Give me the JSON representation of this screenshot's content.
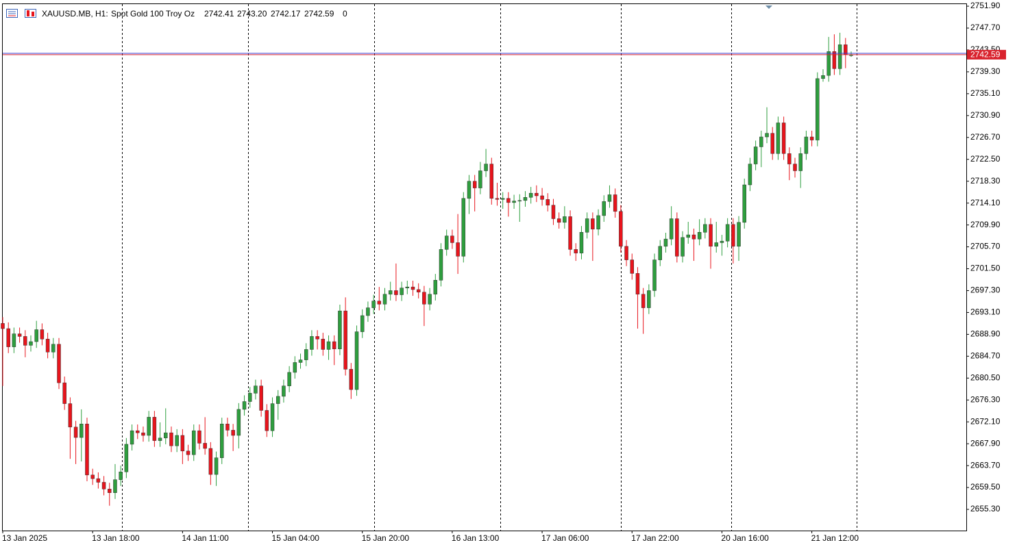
{
  "header": {
    "symbol": "XAUUSD.MB, H1:",
    "description": "Spot Gold 100 Troy Oz",
    "ohlc_labels": [
      "2742.41",
      "2743.20",
      "2742.17",
      "2742.59"
    ],
    "spread": "0"
  },
  "chart_data": {
    "type": "candlestick",
    "up_color": "#2e9e3e",
    "down_color": "#e8141c",
    "wick_color": "#333333",
    "bid_color": "#d9232e",
    "ask_color": "#3a3ad0",
    "categories": [
      "13 Jan 2025",
      null,
      null,
      null,
      null,
      null,
      null,
      null,
      null,
      null,
      null,
      null,
      null,
      null,
      null,
      null,
      "13 Jan 18:00",
      null,
      null,
      null,
      null,
      null,
      null,
      null,
      null,
      null,
      null,
      null,
      null,
      null,
      null,
      null,
      "14 Jan 11:00",
      null,
      null,
      null,
      null,
      null,
      null,
      null,
      null,
      null,
      null,
      null,
      null,
      null,
      null,
      null,
      "15 Jan 04:00",
      null,
      null,
      null,
      null,
      null,
      null,
      null,
      null,
      null,
      null,
      null,
      null,
      null,
      null,
      null,
      "15 Jan 20:00",
      null,
      null,
      null,
      null,
      null,
      null,
      null,
      null,
      null,
      null,
      null,
      null,
      null,
      null,
      null,
      "16 Jan 13:00",
      null,
      null,
      null,
      null,
      null,
      null,
      null,
      null,
      null,
      null,
      null,
      null,
      null,
      null,
      null,
      "17 Jan 06:00",
      null,
      null,
      null,
      null,
      null,
      null,
      null,
      null,
      null,
      null,
      null,
      null,
      null,
      null,
      null,
      "17 Jan 22:00",
      null,
      null,
      null,
      null,
      null,
      null,
      null,
      null,
      null,
      null,
      null,
      null,
      null,
      null,
      null,
      "20 Jan 16:00",
      null,
      null,
      null,
      null,
      null,
      null,
      null,
      null,
      null,
      null,
      null,
      null,
      null,
      null,
      null,
      "21 Jan 12:00",
      null,
      null,
      null,
      null,
      null,
      null,
      null
    ],
    "open": [
      2691.0,
      2690.0,
      2686.5,
      2689.0,
      2688.5,
      2686.8,
      2687.5,
      2689.8,
      2688.0,
      2685.5,
      2687.0,
      2679.6,
      2675.6,
      2671.1,
      2669.1,
      2671.7,
      2661.9,
      2661.2,
      2660.5,
      2659.2,
      2658.5,
      2661.0,
      2662.5,
      2667.8,
      2670.4,
      2670.0,
      2669.5,
      2673.0,
      2668.5,
      2669.0,
      2670.0,
      2667.5,
      2669.5,
      2666.5,
      2665.8,
      2670.4,
      2668.0,
      2667.0,
      2662.0,
      2665.2,
      2671.7,
      2670.5,
      2669.5,
      2674.5,
      2676.0,
      2677.6,
      2679.0,
      2674.3,
      2670.4,
      2675.6,
      2677.0,
      2679.0,
      2681.6,
      2683.5,
      2684.0,
      2686.0,
      2688.5,
      2688.0,
      2686.0,
      2687.5,
      2686.1,
      2693.4,
      2682.2,
      2678.3,
      2689.4,
      2692.5,
      2694.0,
      2695.3,
      2694.7,
      2696.6,
      2697.3,
      2696.5,
      2697.8,
      2698.0,
      2697.5,
      2697.0,
      2694.7,
      2696.6,
      2699.3,
      2705.2,
      2707.8,
      2706.5,
      2703.9,
      2715.0,
      2718.3,
      2717.0,
      2720.3,
      2721.6,
      2715.0,
      2714.8,
      2715.0,
      2714.2,
      2714.5,
      2714.6,
      2715.2,
      2716.0,
      2715.5,
      2714.8,
      2713.7,
      2711.1,
      2710.4,
      2711.5,
      2705.2,
      2704.5,
      2708.5,
      2711.1,
      2709.1,
      2711.7,
      2714.4,
      2715.7,
      2712.5,
      2705.8,
      2703.2,
      2700.6,
      2696.6,
      2694.0,
      2697.3,
      2703.2,
      2705.8,
      2707.2,
      2711.1,
      2703.9,
      2707.5,
      2708.0,
      2707.2,
      2708.5,
      2710.0,
      2705.8,
      2706.5,
      2706.8,
      2710.0,
      2705.8,
      2710.4,
      2717.6,
      2721.6,
      2724.9,
      2726.8,
      2727.5,
      2723.6,
      2729.5,
      2723.6,
      2721.6,
      2720.3,
      2723.6,
      2726.8,
      2726.2,
      2738.0,
      2738.6,
      2743.2,
      2739.9,
      2744.5,
      2742.41
    ],
    "high": [
      2692.2,
      2691.2,
      2690.2,
      2690.2,
      2689.7,
      2688.7,
      2691.5,
      2691.0,
      2689.2,
      2688.2,
      2688.2,
      2680.8,
      2676.8,
      2672.3,
      2674.5,
      2672.9,
      2663.1,
      2662.4,
      2661.7,
      2660.4,
      2664.0,
      2663.7,
      2669.0,
      2671.6,
      2671.6,
      2671.2,
      2674.2,
      2674.2,
      2672.0,
      2674.7,
      2671.2,
      2670.7,
      2670.7,
      2667.7,
      2671.6,
      2671.6,
      2673.0,
      2668.2,
      2666.4,
      2672.9,
      2672.9,
      2671.7,
      2675.7,
      2677.2,
      2678.8,
      2680.2,
      2680.2,
      2675.5,
      2676.8,
      2678.2,
      2680.2,
      2682.8,
      2684.7,
      2685.2,
      2687.2,
      2689.7,
      2689.7,
      2689.2,
      2688.7,
      2688.7,
      2694.6,
      2696.0,
      2683.4,
      2690.6,
      2693.7,
      2695.2,
      2696.5,
      2698.0,
      2697.8,
      2699.0,
      2702.5,
      2699.0,
      2699.2,
      2699.2,
      2698.7,
      2698.2,
      2697.8,
      2700.5,
      2706.4,
      2709.0,
      2709.0,
      2712.0,
      2716.2,
      2719.5,
      2719.5,
      2722.0,
      2724.5,
      2722.8,
      2718.0,
      2716.2,
      2716.2,
      2715.7,
      2715.8,
      2716.4,
      2717.2,
      2717.5,
      2717.0,
      2716.0,
      2714.9,
      2712.3,
      2713.5,
      2712.7,
      2706.4,
      2709.7,
      2712.3,
      2712.3,
      2712.9,
      2715.6,
      2717.5,
      2716.9,
      2713.7,
      2707.0,
      2704.4,
      2701.8,
      2697.8,
      2698.5,
      2704.4,
      2707.0,
      2708.4,
      2713.5,
      2712.3,
      2708.7,
      2710.5,
      2709.2,
      2711.0,
      2711.2,
      2711.2,
      2710.5,
      2708.0,
      2711.2,
      2711.2,
      2711.6,
      2718.8,
      2722.8,
      2726.1,
      2728.0,
      2732.5,
      2728.7,
      2730.7,
      2730.7,
      2724.8,
      2722.8,
      2724.8,
      2728.0,
      2728.0,
      2739.2,
      2739.8,
      2746.0,
      2746.5,
      2746.8,
      2745.8,
      2743.2
    ],
    "low": [
      2679.0,
      2685.3,
      2685.3,
      2687.3,
      2684.5,
      2685.6,
      2686.3,
      2686.8,
      2684.3,
      2684.3,
      2678.4,
      2674.4,
      2665.0,
      2664.0,
      2664.5,
      2660.7,
      2660.0,
      2659.3,
      2658.0,
      2656.0,
      2657.3,
      2659.8,
      2661.3,
      2666.6,
      2668.8,
      2668.3,
      2668.3,
      2667.3,
      2667.3,
      2667.8,
      2666.3,
      2666.3,
      2664.0,
      2664.6,
      2664.6,
      2666.8,
      2665.8,
      2660.0,
      2659.8,
      2664.0,
      2669.3,
      2666.5,
      2667.0,
      2673.3,
      2674.8,
      2676.4,
      2673.1,
      2669.2,
      2669.2,
      2672.5,
      2675.8,
      2677.8,
      2680.4,
      2682.3,
      2682.8,
      2684.8,
      2686.0,
      2684.8,
      2684.0,
      2683.0,
      2684.9,
      2681.0,
      2676.5,
      2677.1,
      2688.2,
      2691.3,
      2692.8,
      2693.5,
      2693.5,
      2695.4,
      2695.3,
      2695.3,
      2696.6,
      2696.3,
      2695.8,
      2690.5,
      2693.5,
      2695.4,
      2698.1,
      2704.0,
      2705.3,
      2700.5,
      2702.7,
      2712.0,
      2712.5,
      2715.8,
      2719.1,
      2713.8,
      2713.6,
      2713.0,
      2711.5,
      2713.0,
      2710.5,
      2713.4,
      2714.0,
      2714.3,
      2713.6,
      2712.5,
      2709.9,
      2709.2,
      2709.2,
      2704.0,
      2703.0,
      2703.3,
      2707.3,
      2703.0,
      2707.9,
      2710.5,
      2713.2,
      2711.3,
      2704.6,
      2702.0,
      2699.4,
      2690.0,
      2689.0,
      2692.8,
      2696.1,
      2702.0,
      2704.6,
      2706.0,
      2702.7,
      2702.7,
      2706.3,
      2703.0,
      2706.0,
      2707.3,
      2701.5,
      2704.6,
      2704.0,
      2705.6,
      2702.5,
      2703.0,
      2709.2,
      2716.4,
      2720.4,
      2721.0,
      2725.6,
      2722.4,
      2722.4,
      2722.4,
      2718.5,
      2719.0,
      2717.0,
      2722.4,
      2725.0,
      2725.0,
      2737.4,
      2737.4,
      2738.7,
      2738.7,
      2740.0,
      2742.17
    ],
    "close": [
      2690.0,
      2686.5,
      2689.0,
      2688.5,
      2686.8,
      2687.5,
      2689.8,
      2688.0,
      2685.5,
      2687.0,
      2679.6,
      2675.6,
      2671.1,
      2669.1,
      2671.7,
      2661.9,
      2661.2,
      2660.5,
      2659.2,
      2658.5,
      2661.0,
      2662.5,
      2667.8,
      2670.4,
      2670.0,
      2669.5,
      2673.0,
      2668.5,
      2669.0,
      2670.0,
      2667.5,
      2669.5,
      2666.5,
      2665.8,
      2670.4,
      2668.0,
      2667.0,
      2662.0,
      2665.2,
      2671.7,
      2670.5,
      2669.5,
      2674.5,
      2676.0,
      2677.6,
      2679.0,
      2674.3,
      2670.4,
      2675.6,
      2677.0,
      2679.0,
      2681.6,
      2683.5,
      2684.0,
      2686.0,
      2688.5,
      2688.0,
      2686.0,
      2687.5,
      2686.1,
      2693.4,
      2682.2,
      2678.3,
      2689.4,
      2692.5,
      2694.0,
      2695.3,
      2694.7,
      2696.6,
      2697.3,
      2696.5,
      2697.8,
      2698.0,
      2697.5,
      2697.0,
      2694.7,
      2696.6,
      2699.3,
      2705.2,
      2707.8,
      2706.5,
      2703.9,
      2715.0,
      2718.3,
      2717.0,
      2720.3,
      2721.6,
      2715.0,
      2714.8,
      2715.0,
      2714.2,
      2714.5,
      2714.6,
      2715.2,
      2716.0,
      2715.5,
      2714.8,
      2713.7,
      2711.1,
      2710.4,
      2711.5,
      2705.2,
      2704.5,
      2708.5,
      2711.1,
      2709.1,
      2711.7,
      2714.4,
      2715.7,
      2712.5,
      2705.8,
      2703.2,
      2700.6,
      2696.6,
      2694.0,
      2697.3,
      2703.2,
      2705.8,
      2707.2,
      2711.1,
      2703.9,
      2707.5,
      2708.0,
      2707.2,
      2708.5,
      2710.0,
      2705.8,
      2706.5,
      2706.8,
      2710.0,
      2705.8,
      2710.4,
      2717.6,
      2721.6,
      2724.9,
      2726.8,
      2727.5,
      2723.6,
      2729.5,
      2723.6,
      2721.6,
      2720.3,
      2723.6,
      2726.8,
      2726.2,
      2738.0,
      2738.6,
      2743.2,
      2739.9,
      2744.5,
      2742.6,
      2742.59
    ],
    "ylim": [
      2651.23,
      2752.43
    ],
    "yticks": [
      {
        "value": 2655.3,
        "label": "2655.30"
      },
      {
        "value": 2659.5,
        "label": "2659.50"
      },
      {
        "value": 2663.7,
        "label": "2663.70"
      },
      {
        "value": 2667.9,
        "label": "2667.90"
      },
      {
        "value": 2672.1,
        "label": "2672.10"
      },
      {
        "value": 2676.3,
        "label": "2676.30"
      },
      {
        "value": 2680.5,
        "label": "2680.50"
      },
      {
        "value": 2684.7,
        "label": "2684.70"
      },
      {
        "value": 2688.9,
        "label": "2688.90"
      },
      {
        "value": 2693.1,
        "label": "2693.10"
      },
      {
        "value": 2697.3,
        "label": "2697.30"
      },
      {
        "value": 2701.5,
        "label": "2701.50"
      },
      {
        "value": 2705.7,
        "label": "2705.70"
      },
      {
        "value": 2709.9,
        "label": "2709.90"
      },
      {
        "value": 2714.1,
        "label": "2714.10"
      },
      {
        "value": 2718.3,
        "label": "2718.30"
      },
      {
        "value": 2722.5,
        "label": "2722.50"
      },
      {
        "value": 2726.7,
        "label": "2726.70"
      },
      {
        "value": 2730.9,
        "label": "2730.90"
      },
      {
        "value": 2735.1,
        "label": "2735.10"
      },
      {
        "value": 2739.3,
        "label": "2739.30"
      },
      {
        "value": 2743.5,
        "label": "2743.50"
      },
      {
        "value": 2747.7,
        "label": "2747.70"
      },
      {
        "value": 2751.9,
        "label": "2751.90"
      }
    ]
  }
}
